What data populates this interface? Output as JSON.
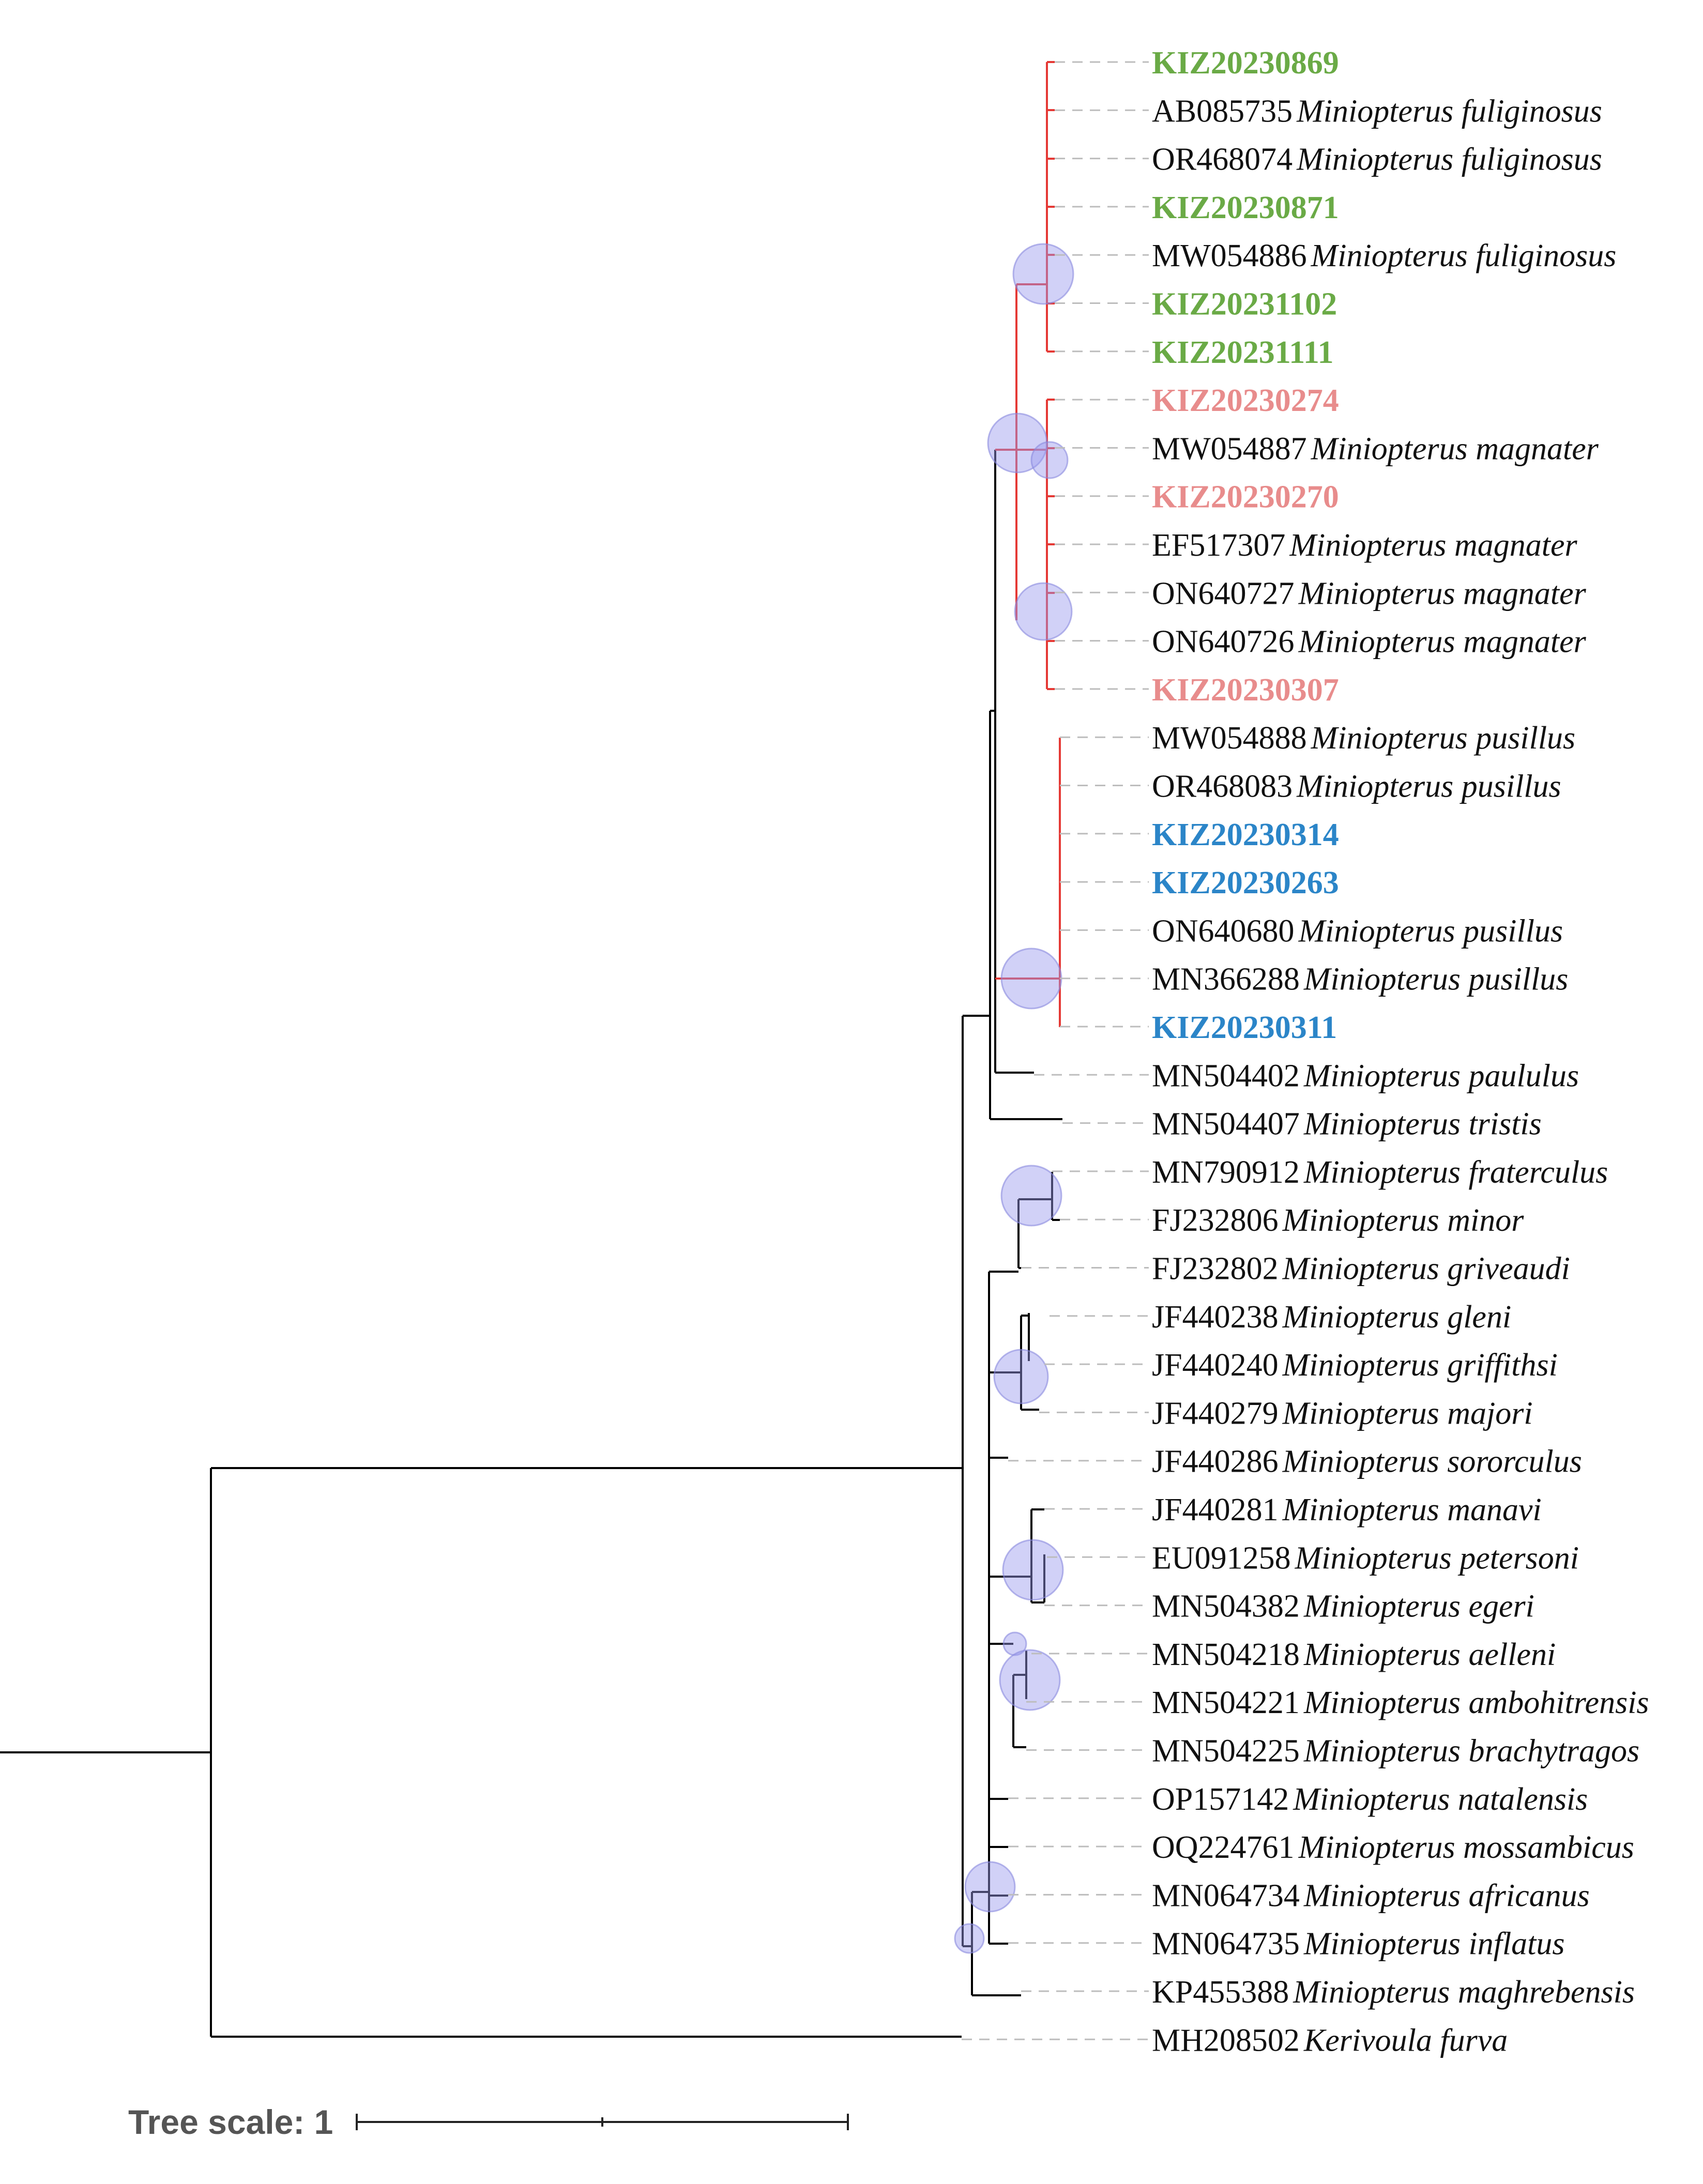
{
  "tree_scale": {
    "label": "Tree scale: 1"
  },
  "colors": {
    "green": "#6aaa46",
    "pink": "#e88c8c",
    "blue": "#2b85c8",
    "black": "#111111",
    "red_branch": "#e53935",
    "bubble": "#9999ee"
  },
  "leaves": [
    {
      "acc": "KIZ20230869",
      "species": "",
      "color": "green"
    },
    {
      "acc": "AB085735",
      "species": "Miniopterus fuliginosus",
      "color": "black"
    },
    {
      "acc": "OR468074",
      "species": "Miniopterus fuliginosus",
      "color": "black"
    },
    {
      "acc": "KIZ20230871",
      "species": "",
      "color": "green"
    },
    {
      "acc": "MW054886",
      "species": "Miniopterus fuliginosus",
      "color": "black"
    },
    {
      "acc": "KIZ20231102",
      "species": "",
      "color": "green"
    },
    {
      "acc": "KIZ20231111",
      "species": "",
      "color": "green"
    },
    {
      "acc": "KIZ20230274",
      "species": "",
      "color": "pink"
    },
    {
      "acc": "MW054887",
      "species": "Miniopterus magnater",
      "color": "black"
    },
    {
      "acc": "KIZ20230270",
      "species": "",
      "color": "pink"
    },
    {
      "acc": "EF517307",
      "species": "Miniopterus magnater",
      "color": "black"
    },
    {
      "acc": "ON640727",
      "species": "Miniopterus magnater",
      "color": "black"
    },
    {
      "acc": "ON640726",
      "species": "Miniopterus magnater",
      "color": "black"
    },
    {
      "acc": "KIZ20230307",
      "species": "",
      "color": "pink"
    },
    {
      "acc": "MW054888",
      "species": "Miniopterus pusillus",
      "color": "black"
    },
    {
      "acc": "OR468083",
      "species": "Miniopterus pusillus",
      "color": "black"
    },
    {
      "acc": "KIZ20230314",
      "species": "",
      "color": "blue"
    },
    {
      "acc": "KIZ20230263",
      "species": "",
      "color": "blue"
    },
    {
      "acc": "ON640680",
      "species": "Miniopterus pusillus",
      "color": "black"
    },
    {
      "acc": "MN366288",
      "species": "Miniopterus pusillus",
      "color": "black"
    },
    {
      "acc": "KIZ20230311",
      "species": "",
      "color": "blue"
    },
    {
      "acc": "MN504402",
      "species": "Miniopterus paululus",
      "color": "black"
    },
    {
      "acc": "MN504407",
      "species": "Miniopterus tristis",
      "color": "black"
    },
    {
      "acc": "MN790912",
      "species": "Miniopterus fraterculus",
      "color": "black"
    },
    {
      "acc": "FJ232806",
      "species": "Miniopterus minor",
      "color": "black"
    },
    {
      "acc": "FJ232802",
      "species": "Miniopterus griveaudi",
      "color": "black"
    },
    {
      "acc": "JF440238",
      "species": "Miniopterus gleni",
      "color": "black"
    },
    {
      "acc": "JF440240",
      "species": "Miniopterus griffithsi",
      "color": "black"
    },
    {
      "acc": "JF440279",
      "species": "Miniopterus majori",
      "color": "black"
    },
    {
      "acc": "JF440286",
      "species": "Miniopterus sororculus",
      "color": "black"
    },
    {
      "acc": "JF440281",
      "species": "Miniopterus manavi",
      "color": "black"
    },
    {
      "acc": "EU091258",
      "species": "Miniopterus petersoni",
      "color": "black"
    },
    {
      "acc": "MN504382",
      "species": "Miniopterus egeri",
      "color": "black"
    },
    {
      "acc": "MN504218",
      "species": "Miniopterus aelleni",
      "color": "black"
    },
    {
      "acc": "MN504221",
      "species": "Miniopterus ambohitrensis",
      "color": "black"
    },
    {
      "acc": "MN504225",
      "species": "Miniopterus brachytragos",
      "color": "black"
    },
    {
      "acc": "OP157142",
      "species": "Miniopterus natalensis",
      "color": "black"
    },
    {
      "acc": "OQ224761",
      "species": "Miniopterus mossambicus",
      "color": "black"
    },
    {
      "acc": "MN064734",
      "species": "Miniopterus africanus",
      "color": "black"
    },
    {
      "acc": "MN064735",
      "species": "Miniopterus inflatus",
      "color": "black"
    },
    {
      "acc": "KP455388",
      "species": "Miniopterus maghrebensis",
      "color": "black"
    },
    {
      "acc": "MH208502",
      "species": "Kerivoula furva",
      "color": "black"
    }
  ]
}
